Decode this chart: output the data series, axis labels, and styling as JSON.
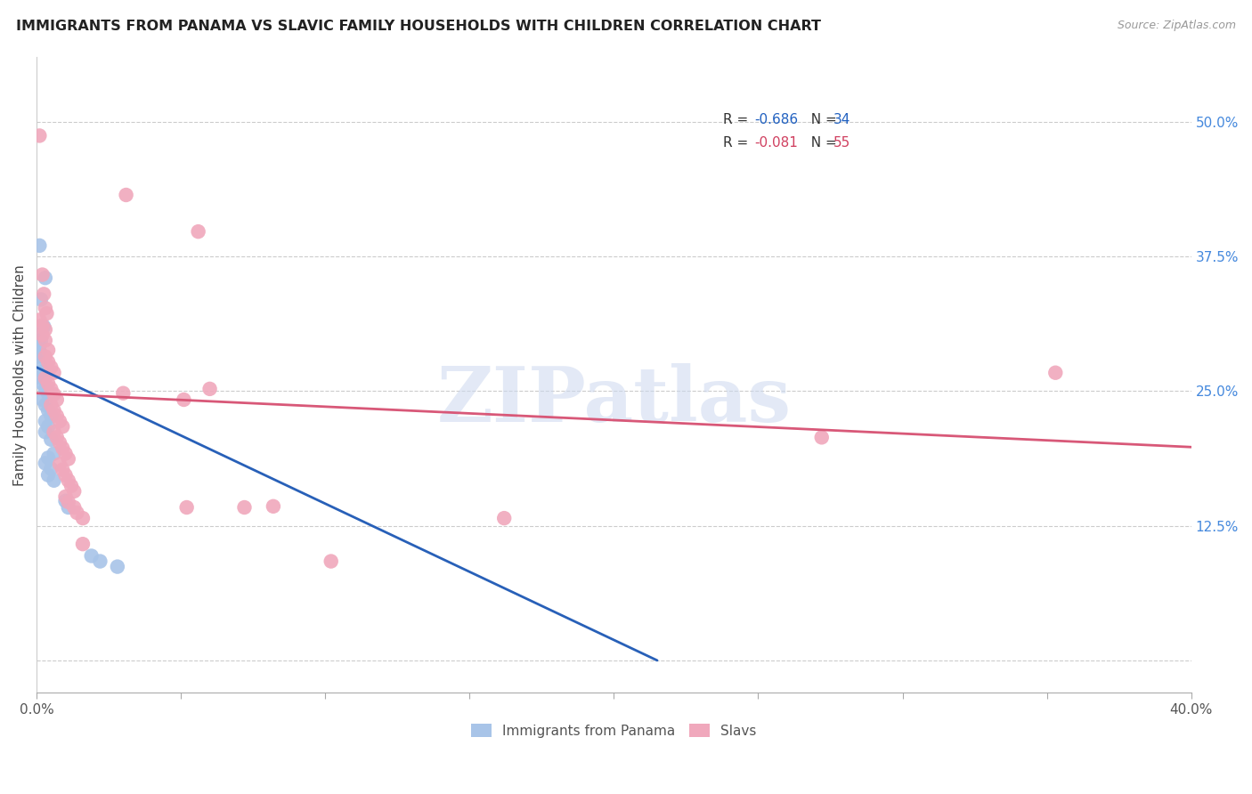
{
  "title": "IMMIGRANTS FROM PANAMA VS SLAVIC FAMILY HOUSEHOLDS WITH CHILDREN CORRELATION CHART",
  "source": "Source: ZipAtlas.com",
  "ylabel": "Family Households with Children",
  "xmin": 0.0,
  "xmax": 0.4,
  "ymin": -0.03,
  "ymax": 0.56,
  "yticks": [
    0.0,
    0.125,
    0.25,
    0.375,
    0.5
  ],
  "ytick_labels": [
    "",
    "12.5%",
    "25.0%",
    "37.5%",
    "50.0%"
  ],
  "xtick_positions": [
    0.0,
    0.4
  ],
  "xtick_labels": [
    "0.0%",
    "40.0%"
  ],
  "blue_color": "#a8c4e8",
  "pink_color": "#f0a8bc",
  "blue_line_color": "#2860b8",
  "pink_line_color": "#d85878",
  "blue_r": "-0.686",
  "blue_n": "34",
  "pink_r": "-0.081",
  "pink_n": "55",
  "legend_label_blue": "Immigrants from Panama",
  "legend_label_pink": "Slavs",
  "watermark": "ZIPatlas",
  "blue_scatter": [
    [
      0.001,
      0.385
    ],
    [
      0.003,
      0.355
    ],
    [
      0.0015,
      0.335
    ],
    [
      0.0025,
      0.31
    ],
    [
      0.0005,
      0.302
    ],
    [
      0.0015,
      0.297
    ],
    [
      0.001,
      0.292
    ],
    [
      0.001,
      0.287
    ],
    [
      0.0005,
      0.282
    ],
    [
      0.001,
      0.275
    ],
    [
      0.002,
      0.268
    ],
    [
      0.001,
      0.263
    ],
    [
      0.002,
      0.257
    ],
    [
      0.003,
      0.252
    ],
    [
      0.004,
      0.247
    ],
    [
      0.002,
      0.242
    ],
    [
      0.003,
      0.237
    ],
    [
      0.004,
      0.232
    ],
    [
      0.005,
      0.227
    ],
    [
      0.003,
      0.222
    ],
    [
      0.004,
      0.217
    ],
    [
      0.003,
      0.212
    ],
    [
      0.005,
      0.205
    ],
    [
      0.006,
      0.192
    ],
    [
      0.004,
      0.188
    ],
    [
      0.003,
      0.183
    ],
    [
      0.005,
      0.178
    ],
    [
      0.004,
      0.172
    ],
    [
      0.006,
      0.167
    ],
    [
      0.01,
      0.148
    ],
    [
      0.011,
      0.142
    ],
    [
      0.019,
      0.097
    ],
    [
      0.022,
      0.092
    ],
    [
      0.028,
      0.087
    ]
  ],
  "pink_scatter": [
    [
      0.001,
      0.487
    ],
    [
      0.031,
      0.432
    ],
    [
      0.056,
      0.398
    ],
    [
      0.002,
      0.358
    ],
    [
      0.0025,
      0.34
    ],
    [
      0.003,
      0.327
    ],
    [
      0.0035,
      0.322
    ],
    [
      0.001,
      0.316
    ],
    [
      0.002,
      0.311
    ],
    [
      0.003,
      0.307
    ],
    [
      0.002,
      0.302
    ],
    [
      0.003,
      0.297
    ],
    [
      0.004,
      0.288
    ],
    [
      0.003,
      0.282
    ],
    [
      0.004,
      0.277
    ],
    [
      0.005,
      0.272
    ],
    [
      0.006,
      0.267
    ],
    [
      0.003,
      0.262
    ],
    [
      0.004,
      0.257
    ],
    [
      0.005,
      0.252
    ],
    [
      0.006,
      0.247
    ],
    [
      0.007,
      0.242
    ],
    [
      0.005,
      0.237
    ],
    [
      0.006,
      0.232
    ],
    [
      0.007,
      0.227
    ],
    [
      0.008,
      0.222
    ],
    [
      0.009,
      0.217
    ],
    [
      0.006,
      0.212
    ],
    [
      0.007,
      0.207
    ],
    [
      0.008,
      0.202
    ],
    [
      0.009,
      0.197
    ],
    [
      0.01,
      0.192
    ],
    [
      0.011,
      0.187
    ],
    [
      0.008,
      0.182
    ],
    [
      0.009,
      0.177
    ],
    [
      0.01,
      0.172
    ],
    [
      0.011,
      0.167
    ],
    [
      0.012,
      0.162
    ],
    [
      0.013,
      0.157
    ],
    [
      0.01,
      0.152
    ],
    [
      0.011,
      0.147
    ],
    [
      0.013,
      0.142
    ],
    [
      0.014,
      0.137
    ],
    [
      0.016,
      0.132
    ],
    [
      0.016,
      0.108
    ],
    [
      0.03,
      0.248
    ],
    [
      0.051,
      0.242
    ],
    [
      0.06,
      0.252
    ],
    [
      0.052,
      0.142
    ],
    [
      0.072,
      0.142
    ],
    [
      0.082,
      0.143
    ],
    [
      0.102,
      0.092
    ],
    [
      0.162,
      0.132
    ],
    [
      0.353,
      0.267
    ],
    [
      0.272,
      0.207
    ]
  ],
  "blue_trend_x": [
    0.0,
    0.215
  ],
  "blue_trend_y": [
    0.272,
    0.0
  ],
  "pink_trend_x": [
    0.0,
    0.4
  ],
  "pink_trend_y": [
    0.248,
    0.198
  ]
}
